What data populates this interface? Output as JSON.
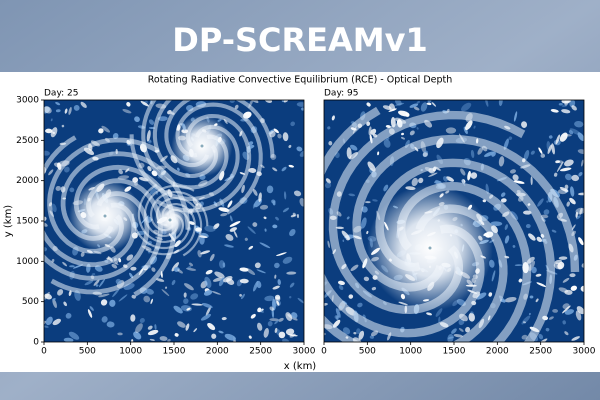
{
  "banner": {
    "title": "DP-SCREAMv1"
  },
  "figure": {
    "title": "Rotating Radiative Convective Equilibrium (RCE) - Optical Depth",
    "xlabel": "x (km)",
    "ylabel": "y (km)"
  },
  "chart_data": [
    {
      "type": "image",
      "title": "Day: 25",
      "xlim": [
        0,
        3000
      ],
      "ylim": [
        0,
        3000
      ],
      "xticks": [
        0,
        500,
        1000,
        1500,
        2000,
        2500,
        3000
      ],
      "yticks": [
        0,
        500,
        1000,
        1500,
        2000,
        2500,
        3000
      ]
    },
    {
      "type": "image",
      "title": "Day: 95",
      "xlim": [
        0,
        3000
      ],
      "ylim": [
        0,
        3000
      ],
      "xticks": [
        0,
        500,
        1000,
        1500,
        2000,
        2500,
        3000
      ]
    }
  ]
}
